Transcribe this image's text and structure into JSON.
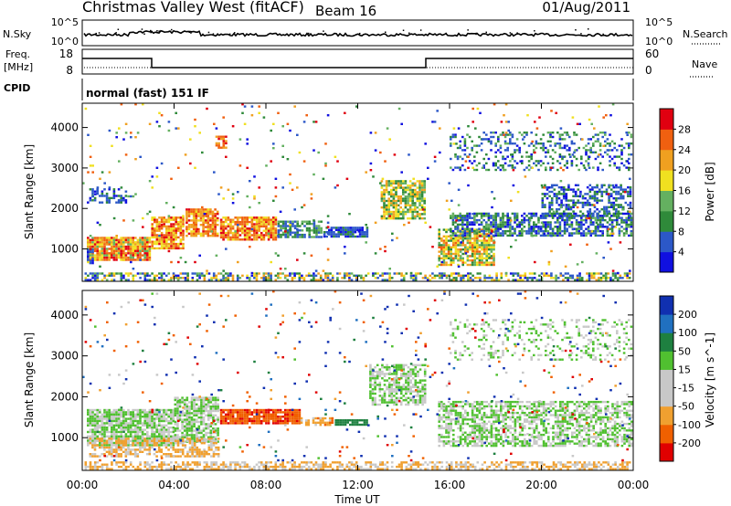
{
  "header": {
    "title": "Christmas Valley West (fitACF)",
    "beam": "Beam 16",
    "date": "01/Aug/2011"
  },
  "strip": {
    "nsky_label": "N.Sky",
    "nsearch_label": "N.Search",
    "freq_label_1": "Freq.",
    "freq_label_2": "[MHz]",
    "nave_label": "Nave",
    "cpid_label": "CPID",
    "cpid_text": "normal (fast) 151 IF",
    "noise_left_ticks": [
      "10^5",
      "10^0"
    ],
    "noise_right_ticks": [
      "10^5",
      "10^0"
    ],
    "freq_left_ticks": [
      "18",
      "8"
    ],
    "freq_right_ticks": [
      "60",
      "0"
    ]
  },
  "colors": {
    "power_scale": [
      "#1010e0",
      "#2c58c8",
      "#2f8a3a",
      "#64b060",
      "#f0e020",
      "#f0a020",
      "#f06010",
      "#e00010"
    ],
    "velocity_scale": [
      "#e00000",
      "#f06000",
      "#f0a030",
      "#c8c8c8",
      "#c8c8c8",
      "#50c030",
      "#1e8040",
      "#2070c0",
      "#1030b0"
    ]
  },
  "chart_data": [
    {
      "type": "heatmap",
      "name": "power",
      "xlabel": "",
      "ylabel": "Slant Range [km]",
      "x_ticks": [
        "00:00",
        "04:00",
        "08:00",
        "12:00",
        "16:00",
        "20:00",
        "00:00"
      ],
      "y_ticks": [
        1000,
        2000,
        3000,
        4000
      ],
      "ylim": [
        200,
        4600
      ],
      "colorbar_label": "Power [dB]",
      "colorbar_ticks": [
        "4",
        "8",
        "12",
        "16",
        "20",
        "24",
        "28"
      ],
      "zlim": [
        0,
        32
      ]
    },
    {
      "type": "heatmap",
      "name": "velocity",
      "xlabel": "Time UT",
      "ylabel": "Slant Range [km]",
      "x_ticks": [
        "00:00",
        "04:00",
        "08:00",
        "12:00",
        "16:00",
        "20:00",
        "00:00"
      ],
      "y_ticks": [
        1000,
        2000,
        3000,
        4000
      ],
      "ylim": [
        200,
        4600
      ],
      "colorbar_label": "Velocity [m s^-1]",
      "colorbar_ticks": [
        "-200",
        "-100",
        "-50",
        "-15",
        "15",
        "50",
        "100",
        "200"
      ],
      "zlim": [
        -250,
        250
      ]
    }
  ]
}
